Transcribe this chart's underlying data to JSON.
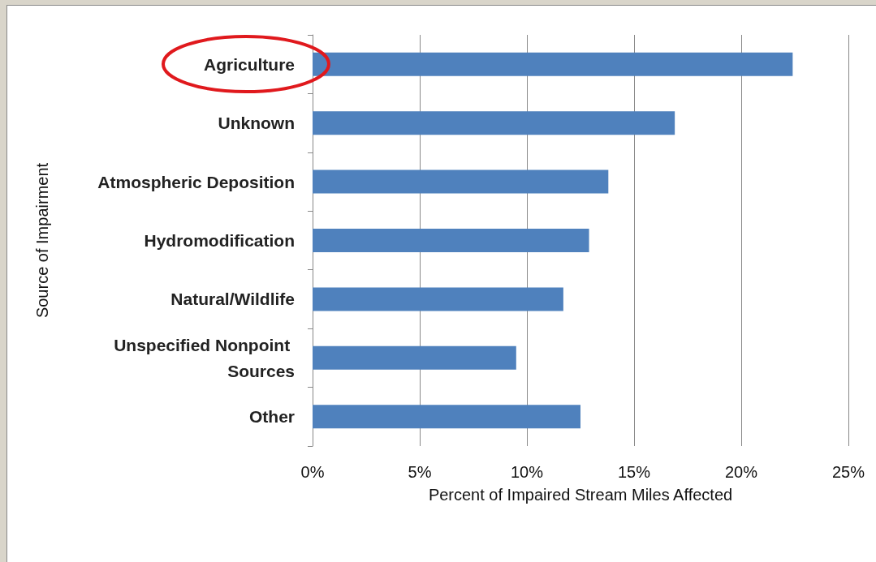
{
  "chart_data": {
    "type": "bar",
    "orientation": "horizontal",
    "xlabel": "Percent of Impaired Stream Miles Affected",
    "ylabel": "Source of Impairment",
    "categories": [
      "Agriculture",
      "Unknown",
      "Atmospheric Deposition",
      "Hydromodification",
      "Natural/Wildlife",
      "Unspecified Nonpoint Sources",
      "Other"
    ],
    "values": [
      22.4,
      16.9,
      13.8,
      12.9,
      11.7,
      9.5,
      12.5
    ],
    "color": "#4f81bd",
    "xlim": [
      0,
      25
    ],
    "xticks": [
      {
        "value": 0,
        "label": "0%"
      },
      {
        "value": 5,
        "label": "5%"
      },
      {
        "value": 10,
        "label": "10%"
      },
      {
        "value": 15,
        "label": "15%"
      },
      {
        "value": 20,
        "label": "20%"
      },
      {
        "value": 25,
        "label": "25%"
      }
    ],
    "grid": "x"
  }
}
